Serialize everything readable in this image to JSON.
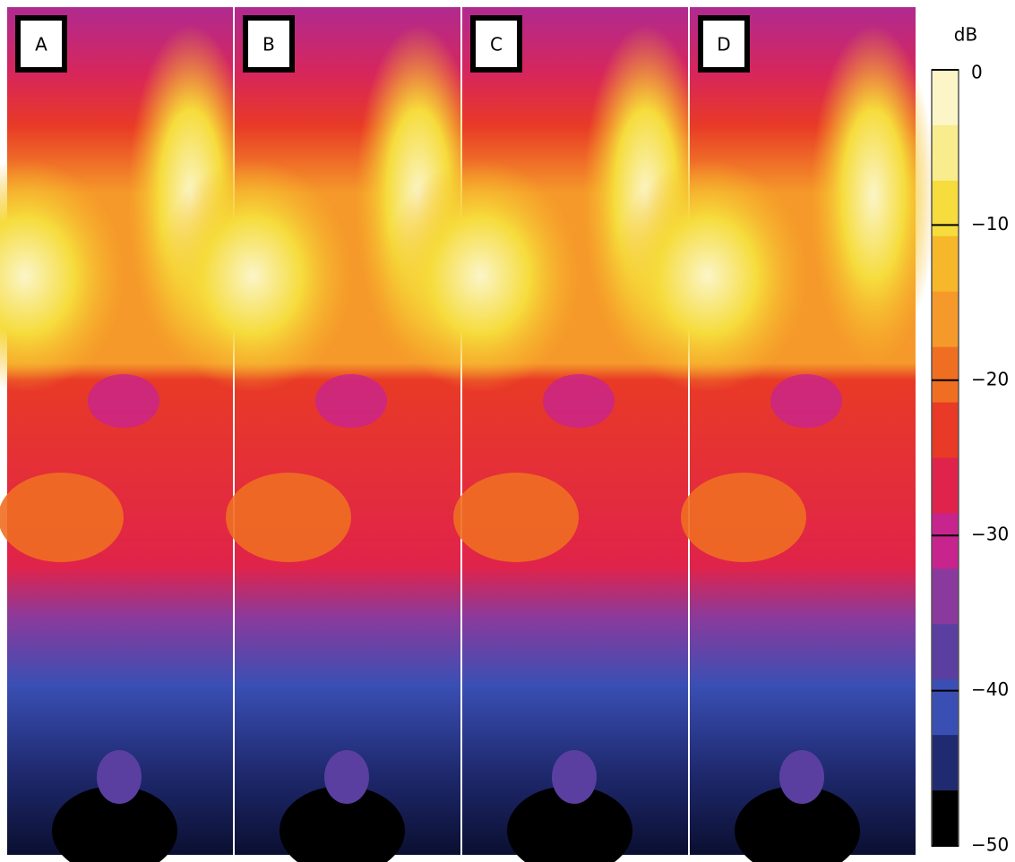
{
  "panels": [
    {
      "label": "A"
    },
    {
      "label": "B"
    },
    {
      "label": "C"
    },
    {
      "label": "D"
    }
  ],
  "colorbar": {
    "label": "dB",
    "lim": [
      0,
      -50
    ],
    "ticks": [
      0,
      -10,
      -20,
      -30,
      -40,
      -50
    ],
    "tick_labels": [
      "0",
      "−10",
      "−20",
      "−30",
      "−40",
      "−50"
    ],
    "colors": [
      "#fbf5c8",
      "#f8ec8c",
      "#f6dc3c",
      "#f7b72a",
      "#f59a2a",
      "#f06e22",
      "#e83a26",
      "#e0234a",
      "#c8248e",
      "#8a3a9c",
      "#5a3fa0",
      "#3a4fb4",
      "#1f2a70",
      "#000000"
    ]
  }
}
